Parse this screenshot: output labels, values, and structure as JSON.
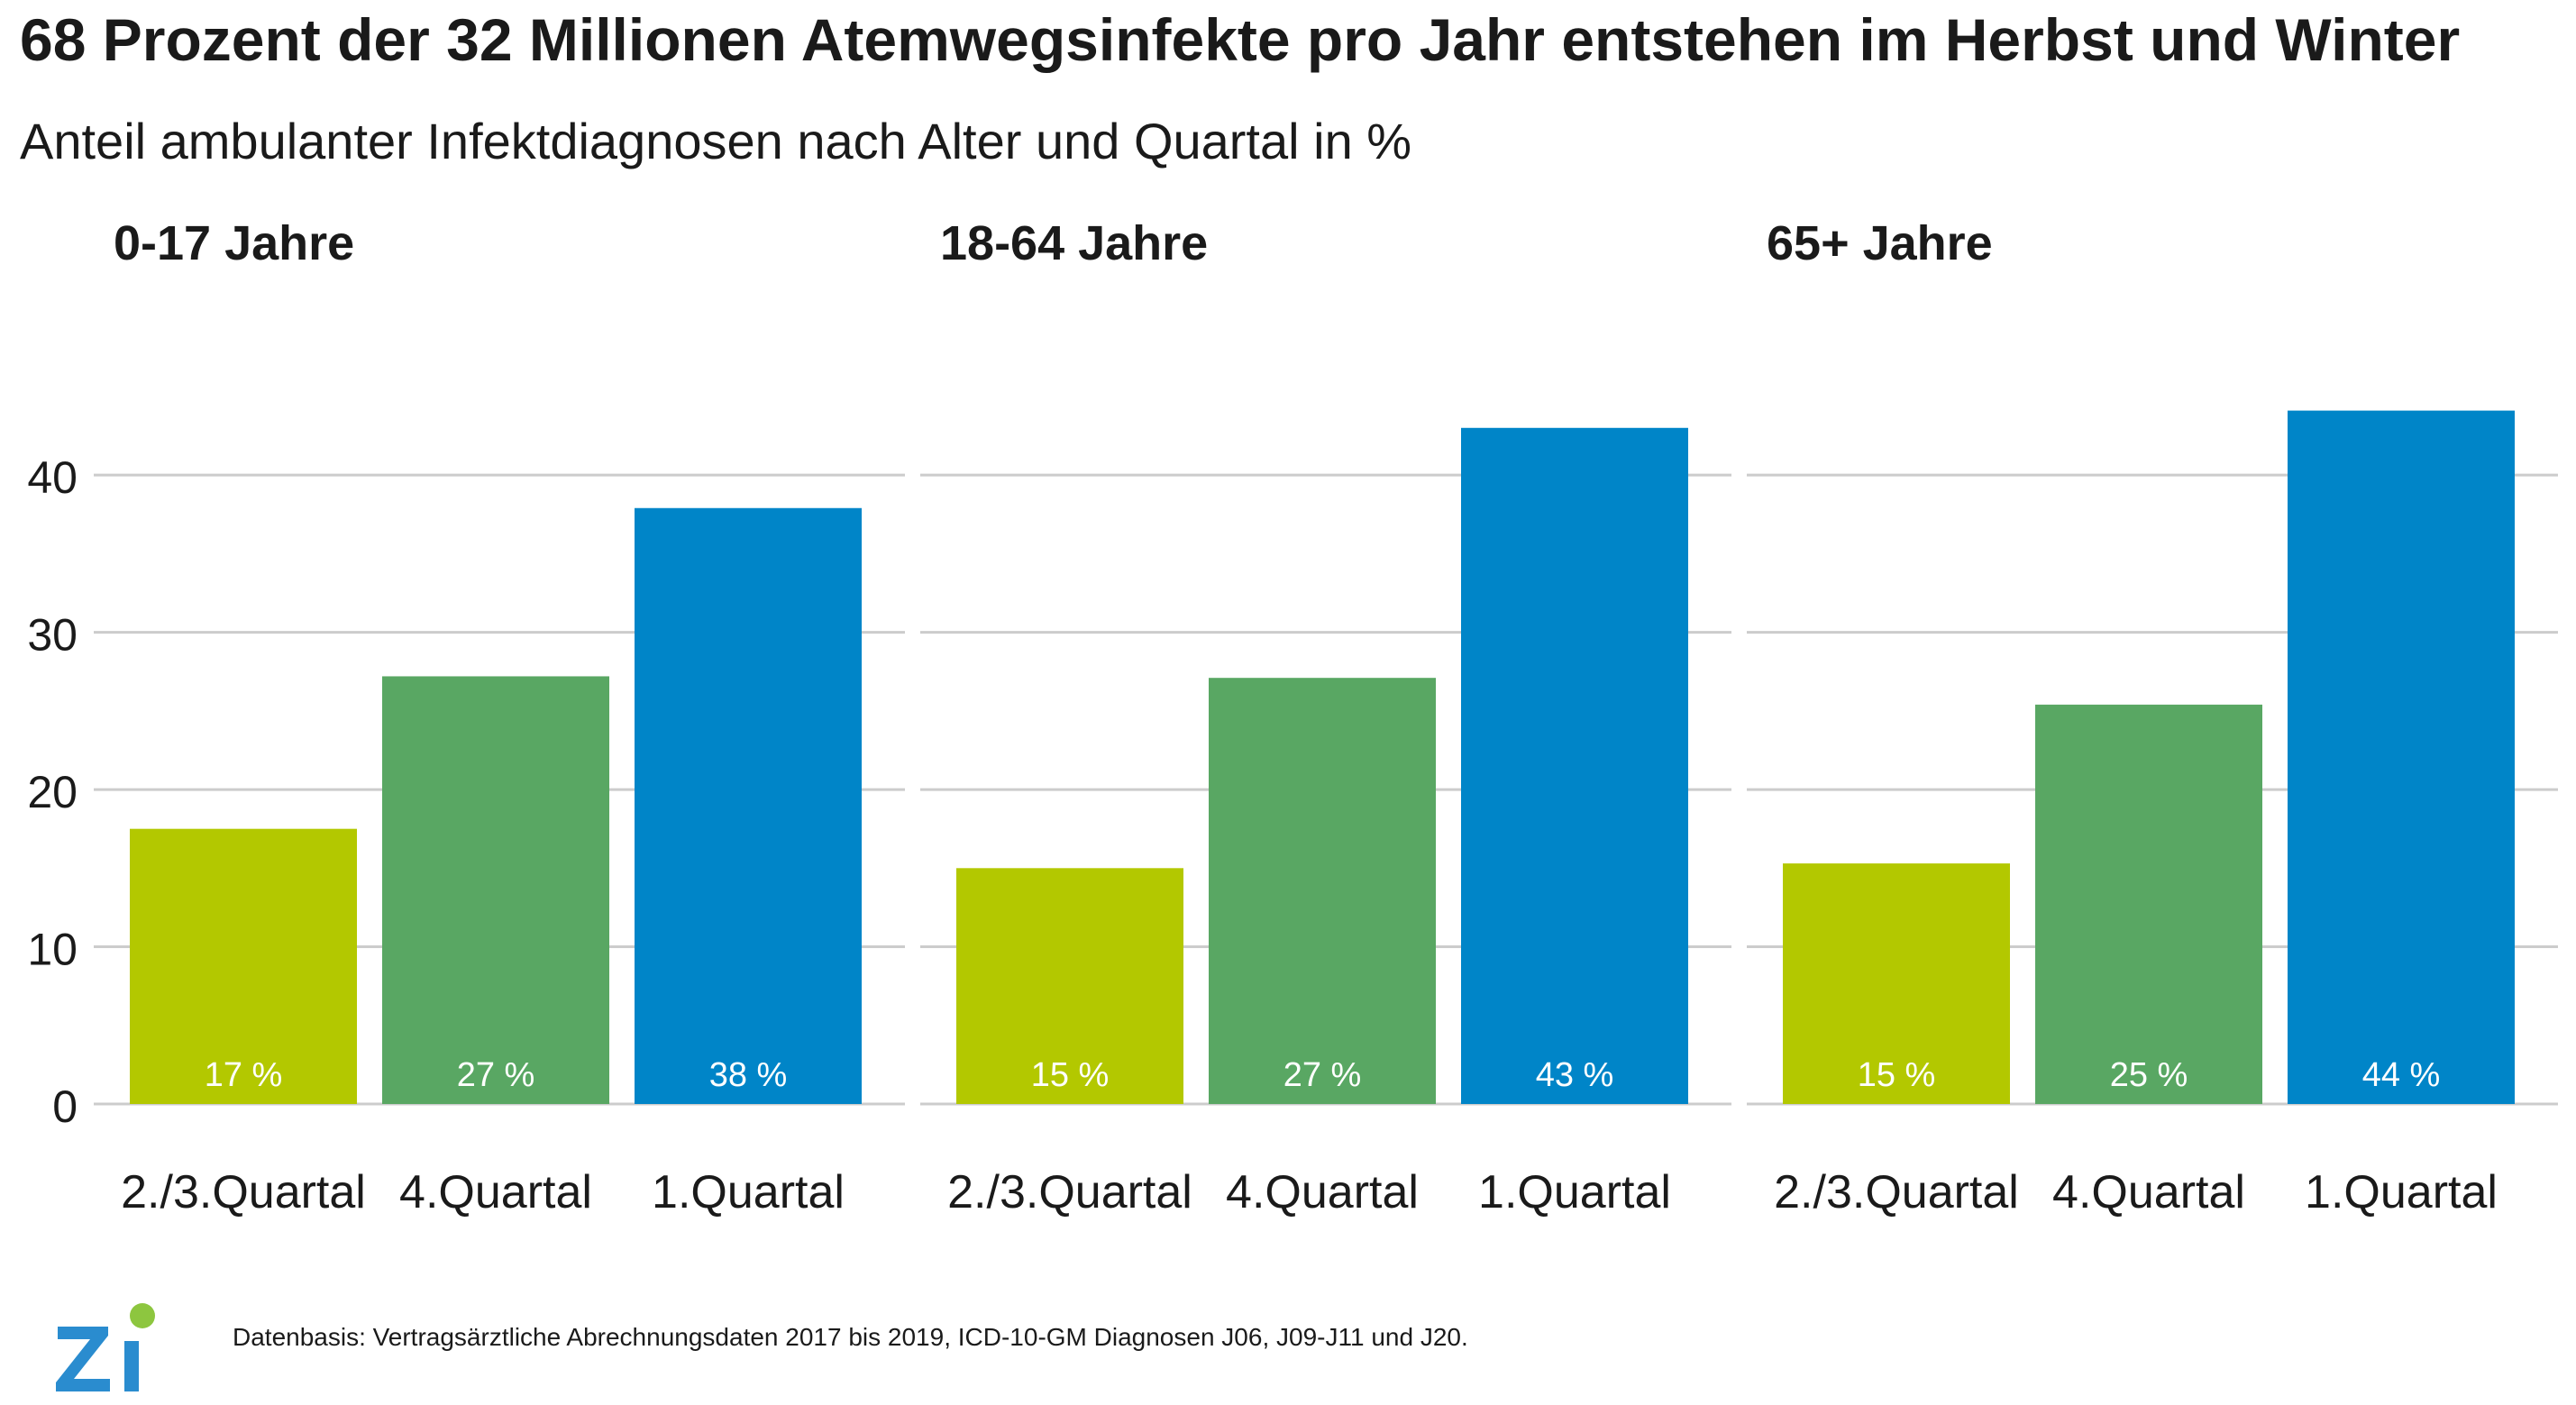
{
  "title": "68 Prozent der 32 Millionen Atemwegsinfekte pro Jahr entstehen im Herbst und Winter",
  "subtitle": "Anteil ambulanter Infektdiagnosen nach Alter und Quartal in %",
  "footer": "Datenbasis: Vertragsärztliche Abrechnungsdaten 2017 bis 2019, ICD-10-GM Diagnosen J06, J09-J11 und J20.",
  "logo": {
    "text": "Zi",
    "color": "#2a8ccf",
    "dot_color": "#8dc63f"
  },
  "colors": {
    "q23": "#b3c800",
    "q4": "#59a763",
    "q1": "#0085c8",
    "grid": "#cccccc",
    "label": "#ffffff"
  },
  "chart_data": {
    "type": "bar",
    "ylim": [
      0,
      47
    ],
    "yticks": [
      0,
      10,
      20,
      30,
      40
    ],
    "grid": true,
    "categories": [
      "2./3.Quartal",
      "4.Quartal",
      "1.Quartal"
    ],
    "panels": [
      {
        "title": "0-17 Jahre",
        "values": [
          17.5,
          27.2,
          37.9
        ],
        "labels": [
          "17 %",
          "27 %",
          "38 %"
        ]
      },
      {
        "title": "18-64 Jahre",
        "values": [
          15.0,
          27.1,
          43.0
        ],
        "labels": [
          "15 %",
          "27 %",
          "43 %"
        ]
      },
      {
        "title": "65+ Jahre",
        "values": [
          15.3,
          25.4,
          44.1
        ],
        "labels": [
          "15 %",
          "25 %",
          "44 %"
        ]
      }
    ]
  }
}
